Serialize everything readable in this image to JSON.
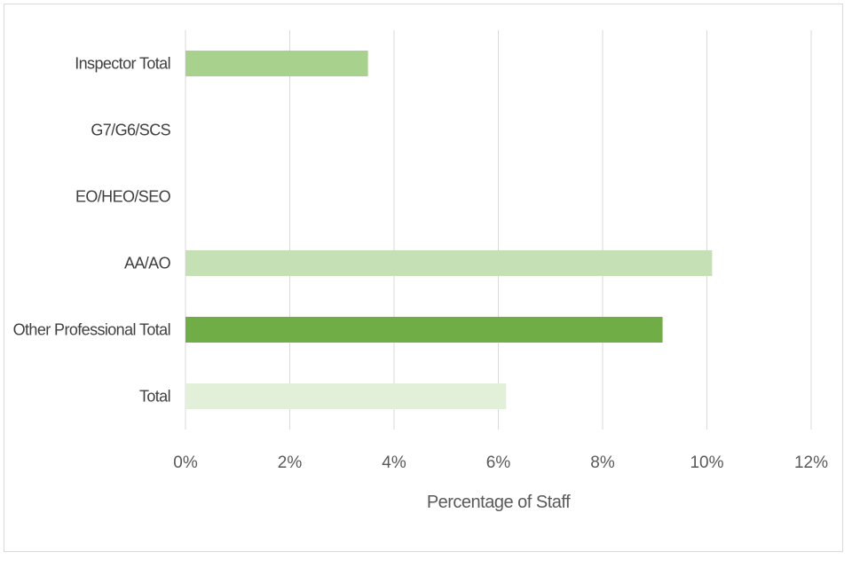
{
  "chart_data": {
    "type": "bar",
    "orientation": "horizontal",
    "categories": [
      "Inspector Total",
      "G7/G6/SCS",
      "EO/HEO/SEO",
      "AA/AO",
      "Other Professional Total",
      "Total"
    ],
    "values": [
      3.5,
      null,
      null,
      10.1,
      9.15,
      6.15
    ],
    "bar_colors": [
      "#a9d18e",
      null,
      null,
      "#c5e0b4",
      "#70ad47",
      "#e2f0d9"
    ],
    "xlabel": "Percentage of Staff",
    "ylabel": "",
    "xlim": [
      0,
      12
    ],
    "x_ticks": [
      0,
      2,
      4,
      6,
      8,
      10,
      12
    ],
    "x_tick_labels": [
      "0%",
      "2%",
      "4%",
      "6%",
      "8%",
      "10%",
      "12%"
    ],
    "gridlines": true,
    "legend": "none"
  }
}
